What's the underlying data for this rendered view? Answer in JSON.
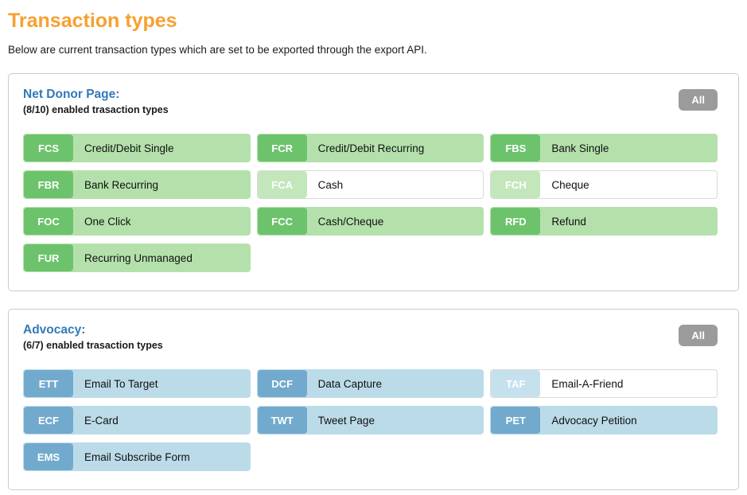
{
  "page": {
    "title": "Transaction types",
    "description": "Below are current transaction types which are set to be exported through the export API."
  },
  "colors": {
    "title_orange": "#f7a02f",
    "heading_blue": "#3279b7",
    "all_button_gray": "#9b9b9b",
    "green_badge": "#6cc36c",
    "green_body": "#b4e1ab",
    "green_badge_disabled": "#c3e7bb",
    "blue_badge": "#72aacd",
    "blue_body": "#bcdbe9",
    "blue_badge_disabled": "#c5e1ee"
  },
  "sections": [
    {
      "heading": "Net Donor Page:",
      "subheading": "(8/10) enabled trasaction types",
      "all_button_label": "All",
      "theme": "green",
      "items": [
        {
          "code": "FCS",
          "label": "Credit/Debit Single",
          "enabled": true
        },
        {
          "code": "FCR",
          "label": "Credit/Debit Recurring",
          "enabled": true
        },
        {
          "code": "FBS",
          "label": "Bank Single",
          "enabled": true
        },
        {
          "code": "FBR",
          "label": "Bank Recurring",
          "enabled": true
        },
        {
          "code": "FCA",
          "label": "Cash",
          "enabled": false
        },
        {
          "code": "FCH",
          "label": "Cheque",
          "enabled": false
        },
        {
          "code": "FOC",
          "label": "One Click",
          "enabled": true
        },
        {
          "code": "FCC",
          "label": "Cash/Cheque",
          "enabled": true
        },
        {
          "code": "RFD",
          "label": "Refund",
          "enabled": true
        },
        {
          "code": "FUR",
          "label": "Recurring Unmanaged",
          "enabled": true
        }
      ]
    },
    {
      "heading": "Advocacy:",
      "subheading": "(6/7) enabled trasaction types",
      "all_button_label": "All",
      "theme": "blue",
      "items": [
        {
          "code": "ETT",
          "label": "Email To Target",
          "enabled": true
        },
        {
          "code": "DCF",
          "label": "Data Capture",
          "enabled": true
        },
        {
          "code": "TAF",
          "label": "Email-A-Friend",
          "enabled": false
        },
        {
          "code": "ECF",
          "label": "E-Card",
          "enabled": true
        },
        {
          "code": "TWT",
          "label": "Tweet Page",
          "enabled": true
        },
        {
          "code": "PET",
          "label": "Advocacy Petition",
          "enabled": true
        },
        {
          "code": "EMS",
          "label": "Email Subscribe Form",
          "enabled": true
        }
      ]
    }
  ]
}
